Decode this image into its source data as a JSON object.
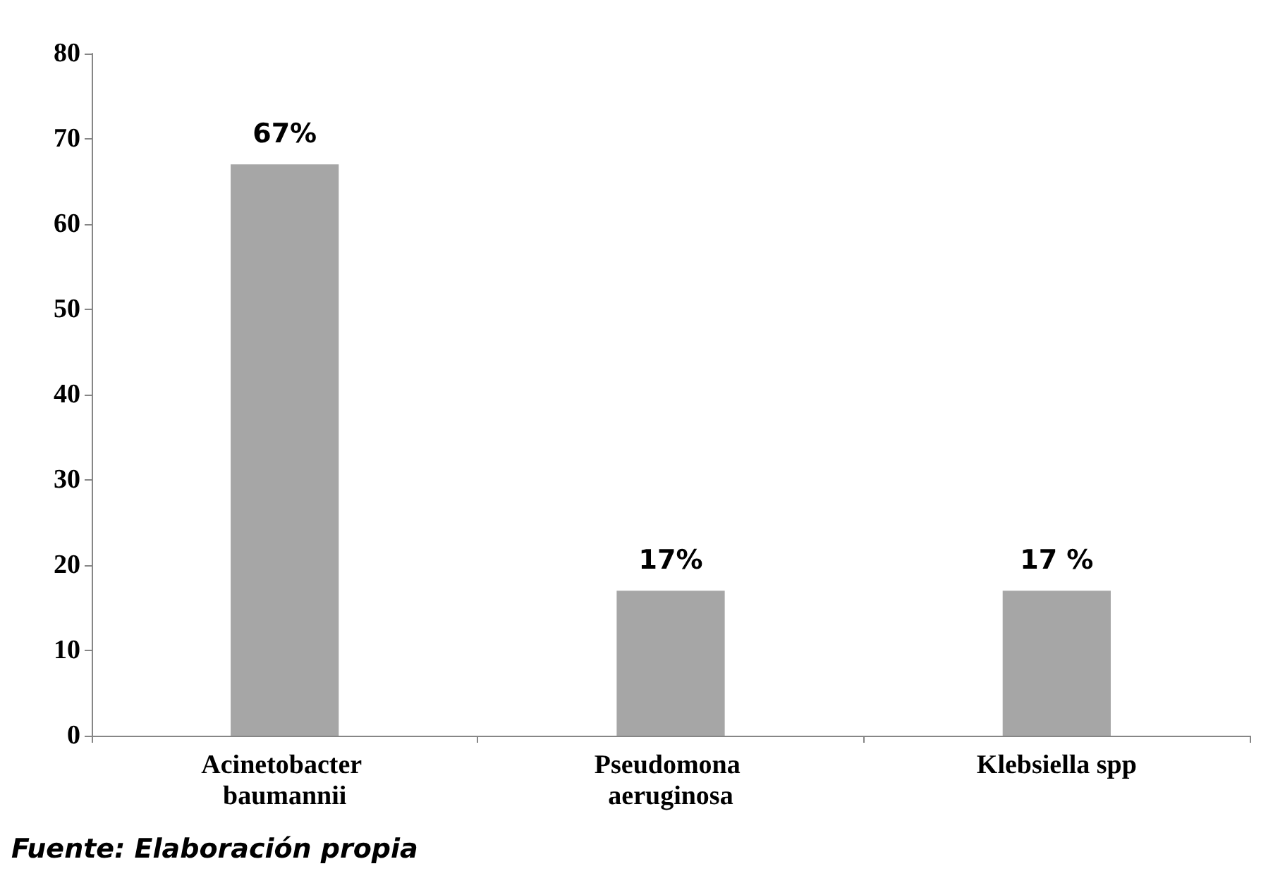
{
  "chart_data": {
    "type": "bar",
    "categories": [
      "Acinetobacter baumannii",
      "Pseudomona aeruginosa",
      "Klebsiella spp"
    ],
    "values": [
      67,
      17,
      17
    ],
    "color": "#a6a6a6",
    "value_labels": [
      "67%",
      "17%",
      "17 %"
    ],
    "ylim": [
      0,
      80
    ],
    "yticks": [
      0,
      10,
      20,
      30,
      40,
      50,
      60,
      70,
      80
    ],
    "grid": false,
    "annotations": [
      "Fuente: Elaboración propia"
    ]
  }
}
